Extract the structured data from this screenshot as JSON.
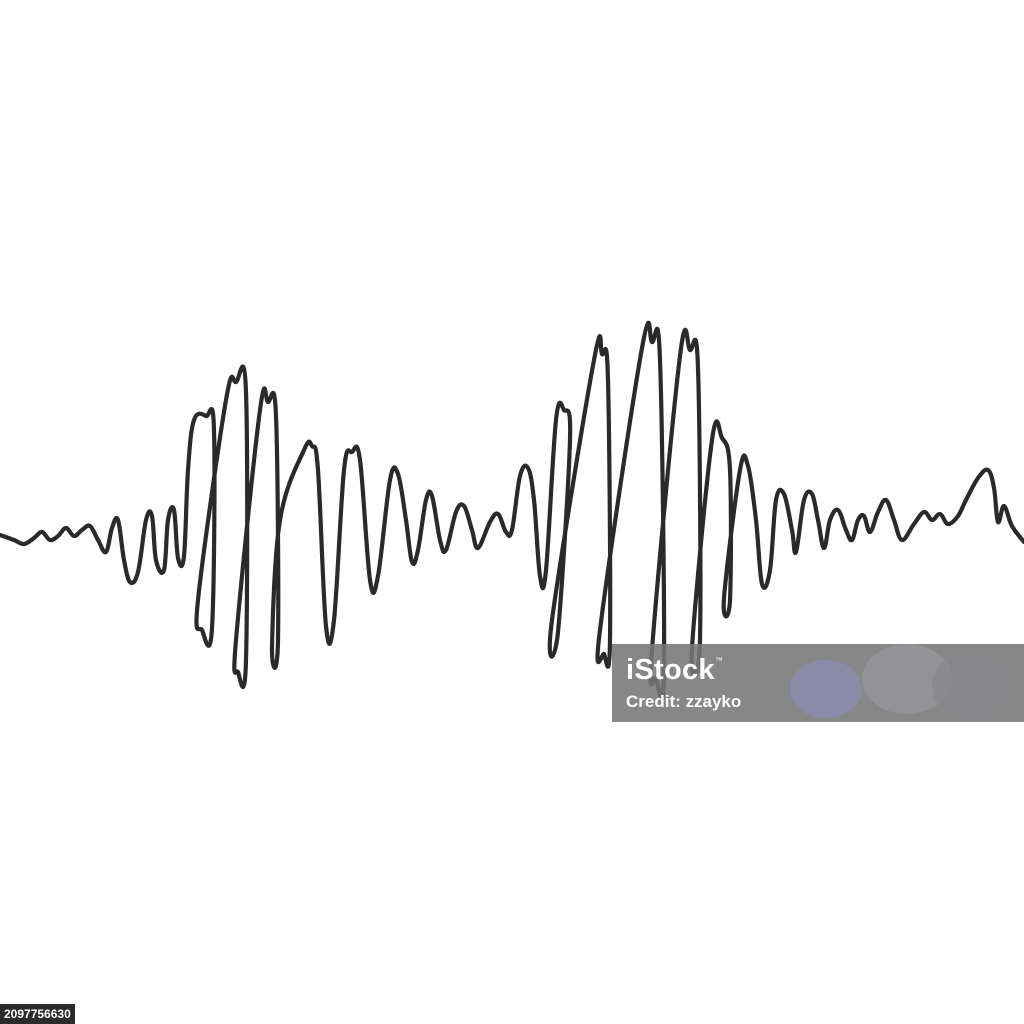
{
  "artwork": {
    "subject": "continuous-line-sound-wave",
    "line_color": "#2a2a2a",
    "background_color": "#ffffff"
  },
  "watermark": {
    "brand": "iStock",
    "trademark": "™",
    "credit": "Credit: zzayko"
  },
  "image_id": "2097756630"
}
